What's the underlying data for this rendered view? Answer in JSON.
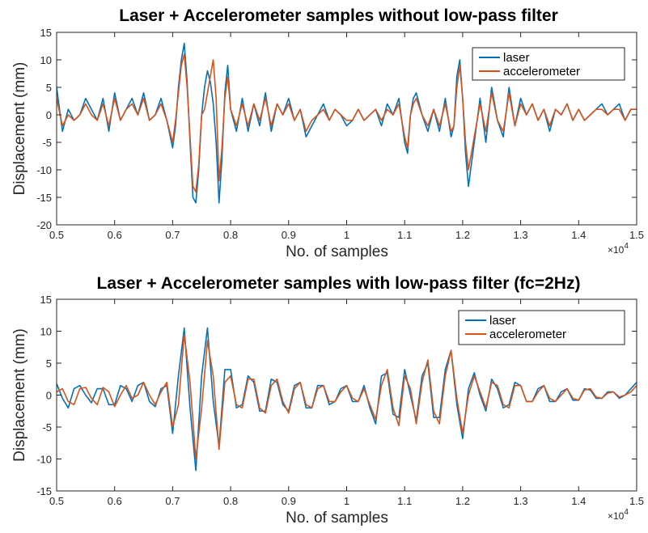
{
  "chart_data": [
    {
      "type": "line",
      "title": "Laser + Accelerometer samples without low-pass filter",
      "xlabel": "No. of samples",
      "ylabel": "Displacement (mm)",
      "xlim": [
        0.5,
        1.5
      ],
      "ylim": [
        -20,
        15
      ],
      "xticks": [
        "0.5",
        "0.6",
        "0.7",
        "0.8",
        "0.9",
        "1",
        "1.1",
        "1.2",
        "1.3",
        "1.4",
        "1.5"
      ],
      "yticks": [
        "15",
        "10",
        "5",
        "0",
        "-5",
        "-10",
        "-15",
        "-20"
      ],
      "x_multiplier": "×10",
      "x_multiplier_exp": "4",
      "legend_position": "top-right",
      "grid": false,
      "series": [
        {
          "name": "laser",
          "color": "#0072BD",
          "x": [
            0.5,
            0.51,
            0.52,
            0.53,
            0.54,
            0.55,
            0.56,
            0.57,
            0.58,
            0.59,
            0.6,
            0.61,
            0.62,
            0.63,
            0.64,
            0.65,
            0.66,
            0.67,
            0.68,
            0.69,
            0.7,
            0.705,
            0.71,
            0.715,
            0.72,
            0.725,
            0.73,
            0.735,
            0.74,
            0.745,
            0.75,
            0.755,
            0.76,
            0.765,
            0.77,
            0.775,
            0.78,
            0.785,
            0.79,
            0.795,
            0.8,
            0.81,
            0.82,
            0.83,
            0.84,
            0.85,
            0.86,
            0.87,
            0.88,
            0.89,
            0.9,
            0.91,
            0.92,
            0.93,
            0.94,
            0.95,
            0.96,
            0.97,
            0.98,
            0.99,
            1.0,
            1.01,
            1.02,
            1.03,
            1.04,
            1.05,
            1.06,
            1.07,
            1.08,
            1.09,
            1.1,
            1.105,
            1.11,
            1.115,
            1.12,
            1.13,
            1.14,
            1.15,
            1.16,
            1.17,
            1.18,
            1.185,
            1.19,
            1.195,
            1.2,
            1.205,
            1.21,
            1.22,
            1.23,
            1.24,
            1.25,
            1.26,
            1.27,
            1.28,
            1.29,
            1.3,
            1.31,
            1.32,
            1.33,
            1.34,
            1.35,
            1.36,
            1.37,
            1.38,
            1.39,
            1.4,
            1.41,
            1.42,
            1.43,
            1.44,
            1.45,
            1.46,
            1.47,
            1.48,
            1.49,
            1.5
          ],
          "y": [
            5,
            -3,
            1,
            -1,
            0,
            3,
            1,
            -1,
            3,
            -3,
            4,
            -1,
            1,
            3,
            0,
            4,
            -1,
            0,
            3,
            -1,
            -6,
            -2,
            5,
            10,
            13,
            6,
            -5,
            -15,
            -16,
            -10,
            0,
            5,
            8,
            6,
            2,
            -5,
            -16,
            -8,
            4,
            9,
            1,
            -3,
            3,
            -3,
            2,
            -2,
            4,
            -3,
            2,
            0,
            3,
            -1,
            1,
            -4,
            -2,
            0,
            2,
            -1,
            1,
            0,
            -2,
            -1,
            1,
            -1,
            0,
            1,
            -2,
            2,
            0,
            3,
            -5,
            -7,
            0,
            3,
            4,
            0,
            -3,
            1,
            -3,
            3,
            -4,
            -2,
            7,
            10,
            3,
            -7,
            -13,
            -5,
            3,
            -5,
            5,
            -1,
            -4,
            5,
            -2,
            3,
            0,
            2,
            -1,
            1,
            -3,
            1,
            0,
            2,
            -1,
            1,
            -1,
            0,
            1,
            2,
            0,
            1,
            2,
            -1,
            1,
            1
          ]
        },
        {
          "name": "accelerometer",
          "color": "#D95319",
          "x": [
            0.5,
            0.51,
            0.52,
            0.53,
            0.54,
            0.55,
            0.56,
            0.57,
            0.58,
            0.59,
            0.6,
            0.61,
            0.62,
            0.63,
            0.64,
            0.65,
            0.66,
            0.67,
            0.68,
            0.69,
            0.7,
            0.705,
            0.71,
            0.715,
            0.72,
            0.725,
            0.73,
            0.735,
            0.74,
            0.745,
            0.75,
            0.755,
            0.76,
            0.765,
            0.77,
            0.775,
            0.78,
            0.785,
            0.79,
            0.795,
            0.8,
            0.81,
            0.82,
            0.83,
            0.84,
            0.85,
            0.86,
            0.87,
            0.88,
            0.89,
            0.9,
            0.91,
            0.92,
            0.93,
            0.94,
            0.95,
            0.96,
            0.97,
            0.98,
            0.99,
            1.0,
            1.01,
            1.02,
            1.03,
            1.04,
            1.05,
            1.06,
            1.07,
            1.08,
            1.09,
            1.1,
            1.105,
            1.11,
            1.115,
            1.12,
            1.13,
            1.14,
            1.15,
            1.16,
            1.17,
            1.18,
            1.185,
            1.19,
            1.195,
            1.2,
            1.205,
            1.21,
            1.22,
            1.23,
            1.24,
            1.25,
            1.26,
            1.27,
            1.28,
            1.29,
            1.3,
            1.31,
            1.32,
            1.33,
            1.34,
            1.35,
            1.36,
            1.37,
            1.38,
            1.39,
            1.4,
            1.41,
            1.42,
            1.43,
            1.44,
            1.45,
            1.46,
            1.47,
            1.48,
            1.49,
            1.5
          ],
          "y": [
            3,
            -2,
            0,
            -1,
            0,
            2,
            0,
            -1,
            2,
            -2,
            3,
            -1,
            1,
            2,
            0,
            3,
            -1,
            0,
            2,
            -1,
            -5,
            -1,
            4,
            9,
            11,
            5,
            -4,
            -13,
            -14,
            -9,
            0,
            1,
            4,
            7,
            10,
            3,
            -12,
            -6,
            3,
            7,
            1,
            -2,
            2,
            -2,
            2,
            -1,
            3,
            -2,
            2,
            0,
            2,
            -1,
            1,
            -3,
            -1,
            0,
            1,
            -1,
            1,
            0,
            -1,
            -1,
            1,
            -1,
            0,
            1,
            -1,
            1,
            0,
            2,
            -4,
            -6,
            0,
            2,
            3,
            0,
            -2,
            1,
            -2,
            2,
            -3,
            -2,
            5,
            9,
            3,
            -5,
            -10,
            -4,
            2,
            -3,
            4,
            -1,
            -3,
            4,
            -2,
            2,
            0,
            2,
            -1,
            1,
            -2,
            1,
            0,
            2,
            -1,
            1,
            -1,
            0,
            1,
            1,
            0,
            1,
            1,
            -1,
            1,
            1
          ]
        }
      ]
    },
    {
      "type": "line",
      "title": "Laser + Accelerometer samples with low-pass filter (fc=2Hz)",
      "xlabel": "No. of samples",
      "ylabel": "Displacement (mm)",
      "xlim": [
        0.5,
        1.5
      ],
      "ylim": [
        -15,
        15
      ],
      "xticks": [
        "0.5",
        "0.6",
        "0.7",
        "0.8",
        "0.9",
        "1",
        "1.1",
        "1.2",
        "1.3",
        "1.4",
        "1.5"
      ],
      "yticks": [
        "15",
        "10",
        "5",
        "0",
        "-5",
        "-10",
        "-15"
      ],
      "x_multiplier": "×10",
      "x_multiplier_exp": "4",
      "legend_position": "top-right",
      "grid": false,
      "series": [
        {
          "name": "laser",
          "color": "#0072BD",
          "x": [
            0.5,
            0.51,
            0.52,
            0.53,
            0.54,
            0.55,
            0.56,
            0.57,
            0.58,
            0.59,
            0.6,
            0.61,
            0.62,
            0.63,
            0.64,
            0.65,
            0.66,
            0.67,
            0.68,
            0.69,
            0.7,
            0.71,
            0.72,
            0.73,
            0.74,
            0.75,
            0.76,
            0.77,
            0.78,
            0.79,
            0.8,
            0.81,
            0.82,
            0.83,
            0.84,
            0.85,
            0.86,
            0.87,
            0.88,
            0.89,
            0.9,
            0.91,
            0.92,
            0.93,
            0.94,
            0.95,
            0.96,
            0.97,
            0.98,
            0.99,
            1.0,
            1.01,
            1.02,
            1.03,
            1.04,
            1.05,
            1.06,
            1.07,
            1.08,
            1.09,
            1.1,
            1.11,
            1.12,
            1.13,
            1.14,
            1.15,
            1.16,
            1.17,
            1.18,
            1.19,
            1.2,
            1.21,
            1.22,
            1.23,
            1.24,
            1.25,
            1.26,
            1.27,
            1.28,
            1.29,
            1.3,
            1.31,
            1.32,
            1.33,
            1.34,
            1.35,
            1.36,
            1.37,
            1.38,
            1.39,
            1.4,
            1.41,
            1.42,
            1.43,
            1.44,
            1.45,
            1.46,
            1.47,
            1.48,
            1.49,
            1.5
          ],
          "y": [
            1.8,
            -0.5,
            -2,
            1,
            1.5,
            0,
            -1.2,
            1,
            1,
            -1.5,
            -1.5,
            1.5,
            1,
            -1,
            1.5,
            2,
            -1,
            -1.8,
            1,
            1.5,
            -6,
            3,
            10.5,
            -2,
            -11.8,
            3,
            10.5,
            -1,
            -8,
            4,
            4,
            -2,
            -1.5,
            3,
            2,
            -2.5,
            -2.5,
            2.5,
            2,
            -1.5,
            -2.5,
            1.5,
            2,
            -2,
            -2,
            1.5,
            1.5,
            -1.5,
            -1,
            1,
            1.5,
            -1,
            -1,
            1.5,
            -2,
            -4.5,
            3,
            3.5,
            -3,
            -3.5,
            4,
            0,
            -4,
            3,
            5,
            -3.5,
            -3.5,
            4,
            7,
            -1.5,
            -6.8,
            1,
            3.5,
            0,
            -2.5,
            2.5,
            1,
            -2,
            -1.5,
            2,
            1.5,
            -1,
            -1,
            1,
            1.5,
            -1,
            -1,
            0.5,
            1,
            -0.8,
            -0.8,
            1,
            0.8,
            -0.5,
            -0.5,
            0.5,
            0.5,
            -0.5,
            0,
            1,
            2
          ]
        },
        {
          "name": "accelerometer",
          "color": "#D95319",
          "x": [
            0.5,
            0.51,
            0.52,
            0.53,
            0.54,
            0.55,
            0.56,
            0.57,
            0.58,
            0.59,
            0.6,
            0.61,
            0.62,
            0.63,
            0.64,
            0.65,
            0.66,
            0.67,
            0.68,
            0.69,
            0.7,
            0.71,
            0.72,
            0.73,
            0.74,
            0.75,
            0.76,
            0.77,
            0.78,
            0.79,
            0.8,
            0.81,
            0.82,
            0.83,
            0.84,
            0.85,
            0.86,
            0.87,
            0.88,
            0.89,
            0.9,
            0.91,
            0.92,
            0.93,
            0.94,
            0.95,
            0.96,
            0.97,
            0.98,
            0.99,
            1.0,
            1.01,
            1.02,
            1.03,
            1.04,
            1.05,
            1.06,
            1.07,
            1.08,
            1.09,
            1.1,
            1.11,
            1.12,
            1.13,
            1.14,
            1.15,
            1.16,
            1.17,
            1.18,
            1.19,
            1.2,
            1.21,
            1.22,
            1.23,
            1.24,
            1.25,
            1.26,
            1.27,
            1.28,
            1.29,
            1.3,
            1.31,
            1.32,
            1.33,
            1.34,
            1.35,
            1.36,
            1.37,
            1.38,
            1.39,
            1.4,
            1.41,
            1.42,
            1.43,
            1.44,
            1.45,
            1.46,
            1.47,
            1.48,
            1.49,
            1.5
          ],
          "y": [
            0.5,
            1,
            -1,
            -1.5,
            1,
            1.2,
            -0.5,
            -1.5,
            1.2,
            0.5,
            -1.8,
            0,
            1.5,
            -0.5,
            0,
            2,
            0,
            -1.5,
            0.5,
            2,
            -5,
            -1.5,
            9.5,
            2,
            -10,
            -2,
            8.5,
            3,
            -8.5,
            2,
            3,
            -1.5,
            -2,
            2.5,
            2.5,
            -2,
            -2.8,
            1.5,
            2.5,
            -1,
            -2.8,
            1,
            2,
            -1.5,
            -2,
            1,
            1.5,
            -1,
            -1,
            0.5,
            1.5,
            -0.5,
            -1,
            1,
            -1.5,
            -3.8,
            1.5,
            4,
            -2,
            -4.8,
            3,
            1,
            -4.5,
            2,
            5.5,
            -2.5,
            -4.5,
            3,
            7,
            -0.5,
            -6,
            0,
            3,
            0.5,
            -2,
            2,
            1.5,
            -1.5,
            -2,
            1.5,
            1.5,
            -1,
            -1,
            0.5,
            1.5,
            -0.5,
            -1,
            0,
            1,
            -0.5,
            -0.8,
            0.8,
            1,
            -0.3,
            -0.5,
            0.3,
            0.5,
            -0.3,
            0,
            0.5,
            1.5
          ]
        }
      ]
    }
  ]
}
